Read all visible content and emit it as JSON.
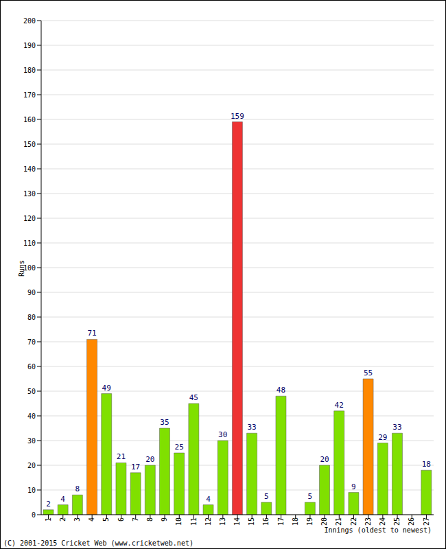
{
  "chart_data": {
    "type": "bar",
    "x_label": "Innings (oldest to newest)",
    "y_label": "Runs",
    "annotations": [
      "(C) 2001-2015 Cricket Web (www.cricketweb.net)"
    ],
    "categories": [
      "1",
      "2",
      "3",
      "4",
      "5",
      "6",
      "7",
      "8",
      "9",
      "10",
      "11",
      "12",
      "13",
      "14",
      "15",
      "16",
      "17",
      "18",
      "19",
      "20",
      "21",
      "22",
      "23",
      "24",
      "25",
      "26",
      "27"
    ],
    "values": [
      2,
      4,
      8,
      71,
      49,
      21,
      17,
      20,
      35,
      25,
      45,
      4,
      30,
      159,
      33,
      5,
      48,
      0,
      5,
      20,
      42,
      9,
      55,
      29,
      33,
      0,
      18
    ],
    "colors": [
      "#80e000",
      "#80e000",
      "#80e000",
      "#ff8800",
      "#80e000",
      "#80e000",
      "#80e000",
      "#80e000",
      "#80e000",
      "#80e000",
      "#80e000",
      "#80e000",
      "#80e000",
      "#ee3333",
      "#80e000",
      "#80e000",
      "#80e000",
      "#80e000",
      "#80e000",
      "#80e000",
      "#80e000",
      "#80e000",
      "#ff8800",
      "#80e000",
      "#80e000",
      "#80e000",
      "#80e000"
    ],
    "ylim": [
      0,
      200
    ],
    "yticks": [
      0,
      10,
      20,
      30,
      40,
      50,
      60,
      70,
      80,
      90,
      100,
      110,
      120,
      130,
      140,
      150,
      160,
      170,
      180,
      190,
      200
    ],
    "grid": true,
    "data_labels": true
  }
}
